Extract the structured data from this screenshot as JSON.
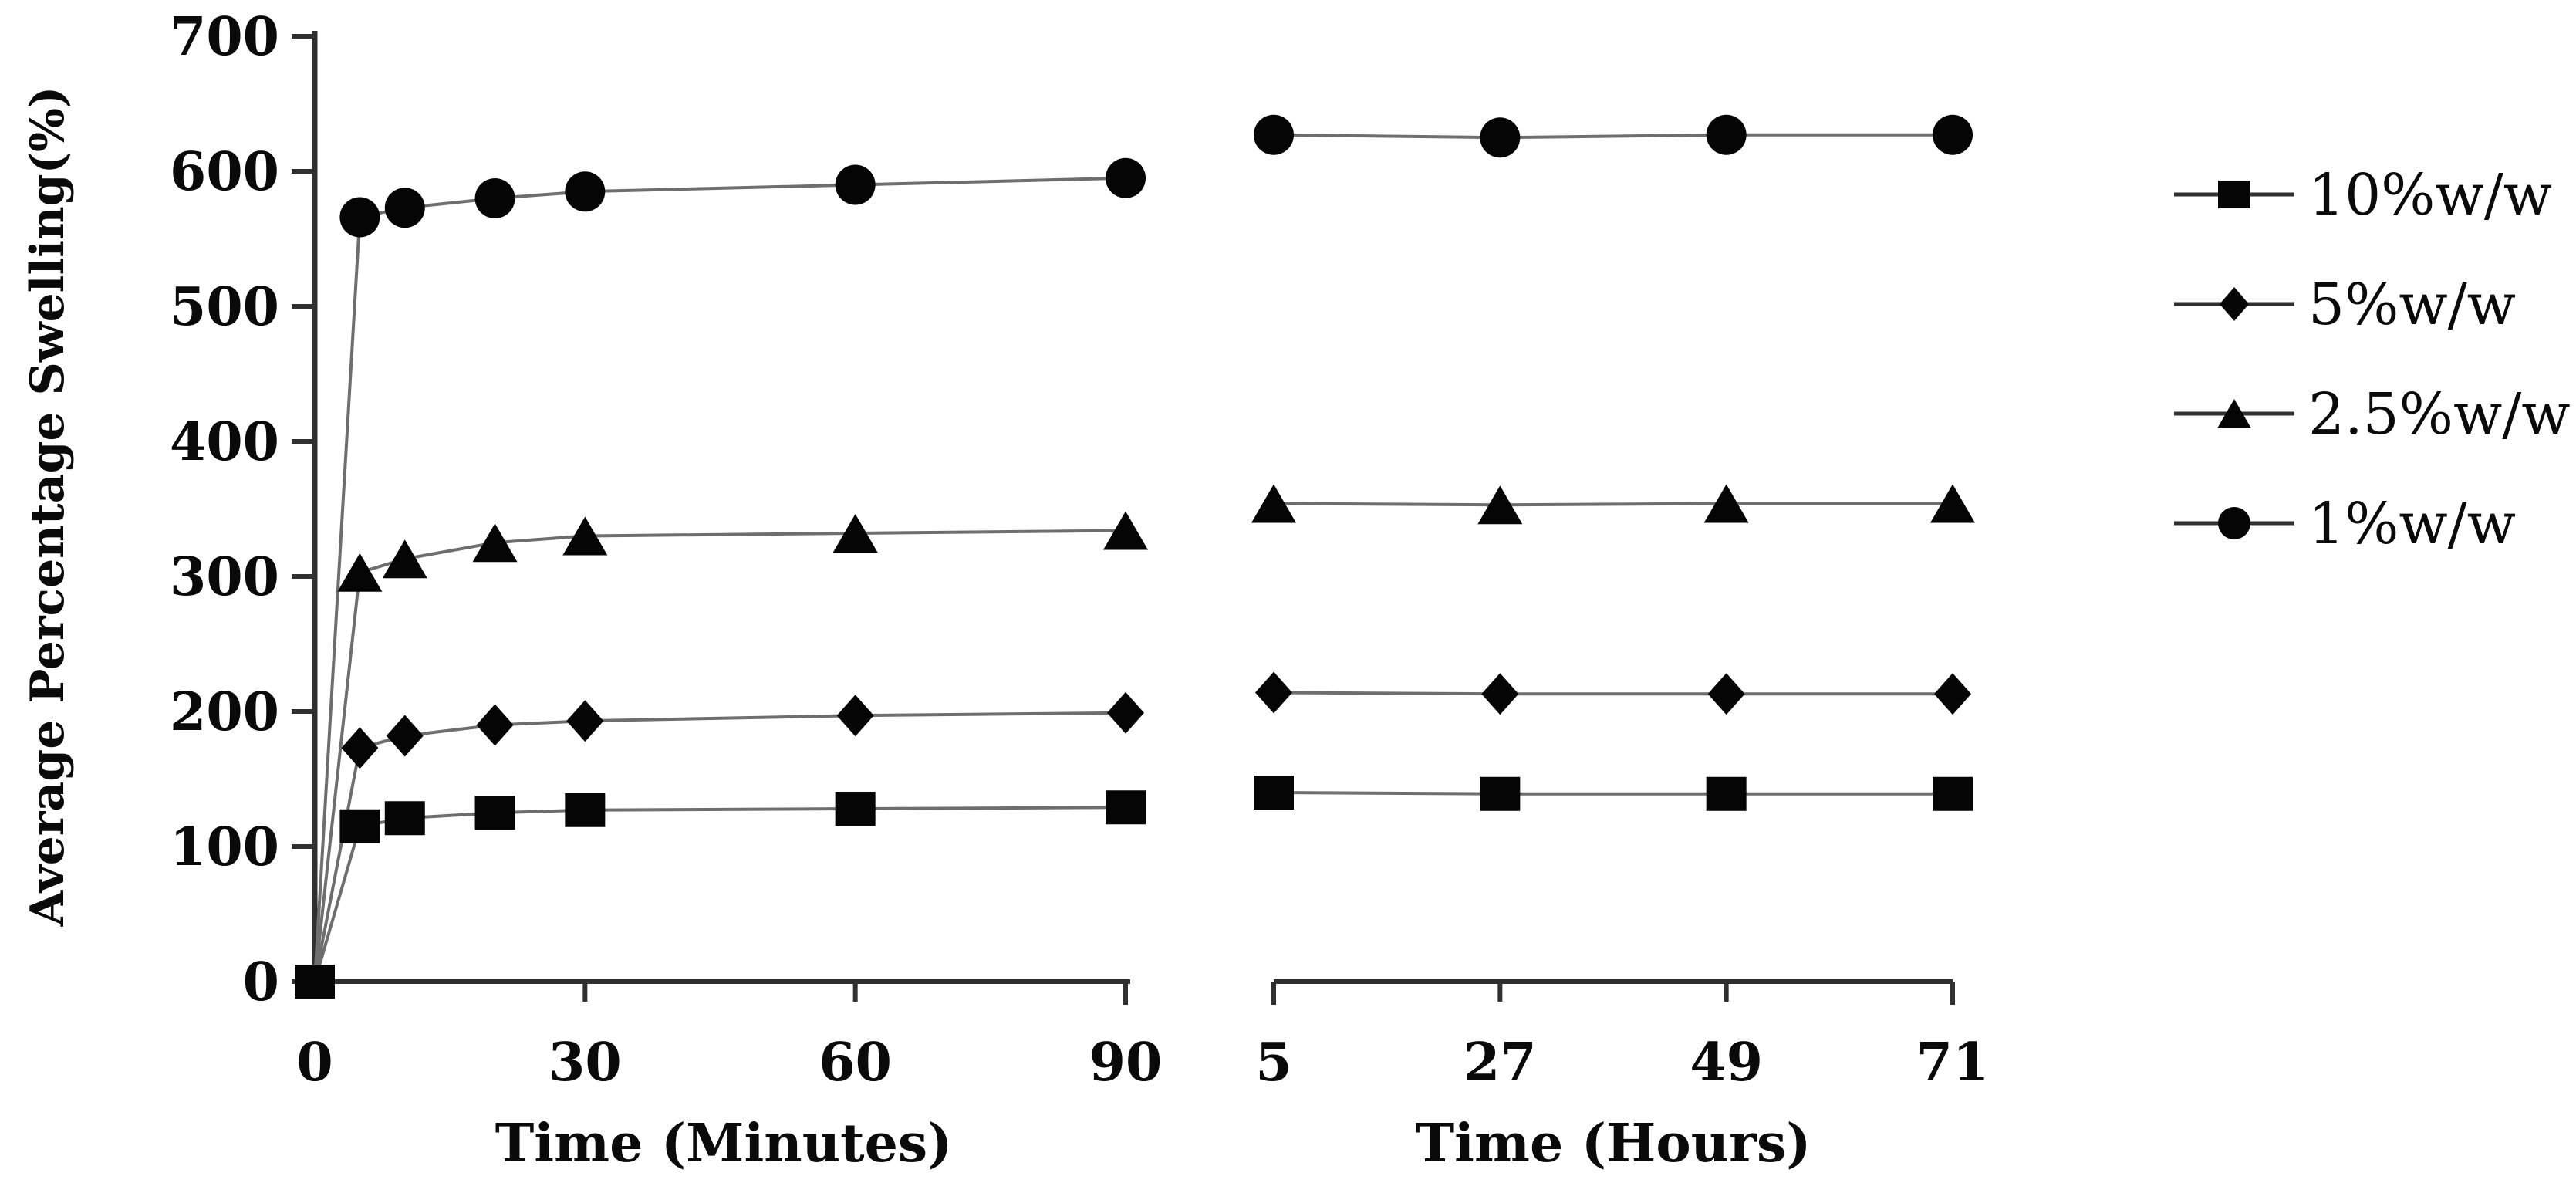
{
  "figure": {
    "background": "#ffffff",
    "text_color": "#0a0a0a",
    "axis_color": "#303030",
    "series_line_color": "#6e6e6e",
    "marker_color": "#050505"
  },
  "chart_data": {
    "type": "line",
    "title": "",
    "ylabel": "Average Percentage Swelling(%)",
    "ylim": [
      0,
      700
    ],
    "yticks": [
      0,
      100,
      200,
      300,
      400,
      500,
      600,
      700
    ],
    "grid": false,
    "legend_position": "right",
    "panels": [
      {
        "xlabel": "Time (Minutes)",
        "xlim": [
          0,
          90
        ],
        "xticks": [
          0,
          30,
          60,
          90
        ],
        "x": [
          0,
          5,
          10,
          20,
          30,
          60,
          90
        ],
        "series": [
          {
            "name": "10%w/w",
            "marker": "square",
            "marker_at_first_point": true,
            "values": [
              0,
              115,
              121,
              125,
              127,
              128,
              129
            ]
          },
          {
            "name": "5%w/w",
            "marker": "diamond",
            "marker_at_first_point": false,
            "values": [
              0,
              173,
              182,
              190,
              193,
              197,
              199
            ]
          },
          {
            "name": "2.5%w/w",
            "marker": "triangle",
            "marker_at_first_point": false,
            "values": [
              0,
              303,
              313,
              325,
              330,
              332,
              334
            ]
          },
          {
            "name": "1%w/w",
            "marker": "circle",
            "marker_at_first_point": false,
            "values": [
              0,
              566,
              573,
              580,
              585,
              590,
              595
            ]
          }
        ]
      },
      {
        "xlabel": "Time (Hours)",
        "xlim": [
          5,
          71
        ],
        "xticks": [
          5,
          27,
          49,
          71
        ],
        "x": [
          5,
          27,
          49,
          71
        ],
        "series": [
          {
            "name": "10%w/w",
            "marker": "square",
            "marker_at_first_point": true,
            "values": [
              140,
              139,
              139,
              139
            ]
          },
          {
            "name": "5%w/w",
            "marker": "diamond",
            "marker_at_first_point": true,
            "values": [
              214,
              213,
              213,
              213
            ]
          },
          {
            "name": "2.5%w/w",
            "marker": "triangle",
            "marker_at_first_point": true,
            "values": [
              354,
              353,
              354,
              354
            ]
          },
          {
            "name": "1%w/w",
            "marker": "circle",
            "marker_at_first_point": true,
            "values": [
              627,
              625,
              627,
              627
            ]
          }
        ]
      }
    ],
    "legend": {
      "items": [
        {
          "label": "10%w/w",
          "marker": "square"
        },
        {
          "label": "5%w/w",
          "marker": "diamond"
        },
        {
          "label": "2.5%w/w",
          "marker": "triangle"
        },
        {
          "label": "1%w/w",
          "marker": "circle"
        }
      ]
    }
  }
}
